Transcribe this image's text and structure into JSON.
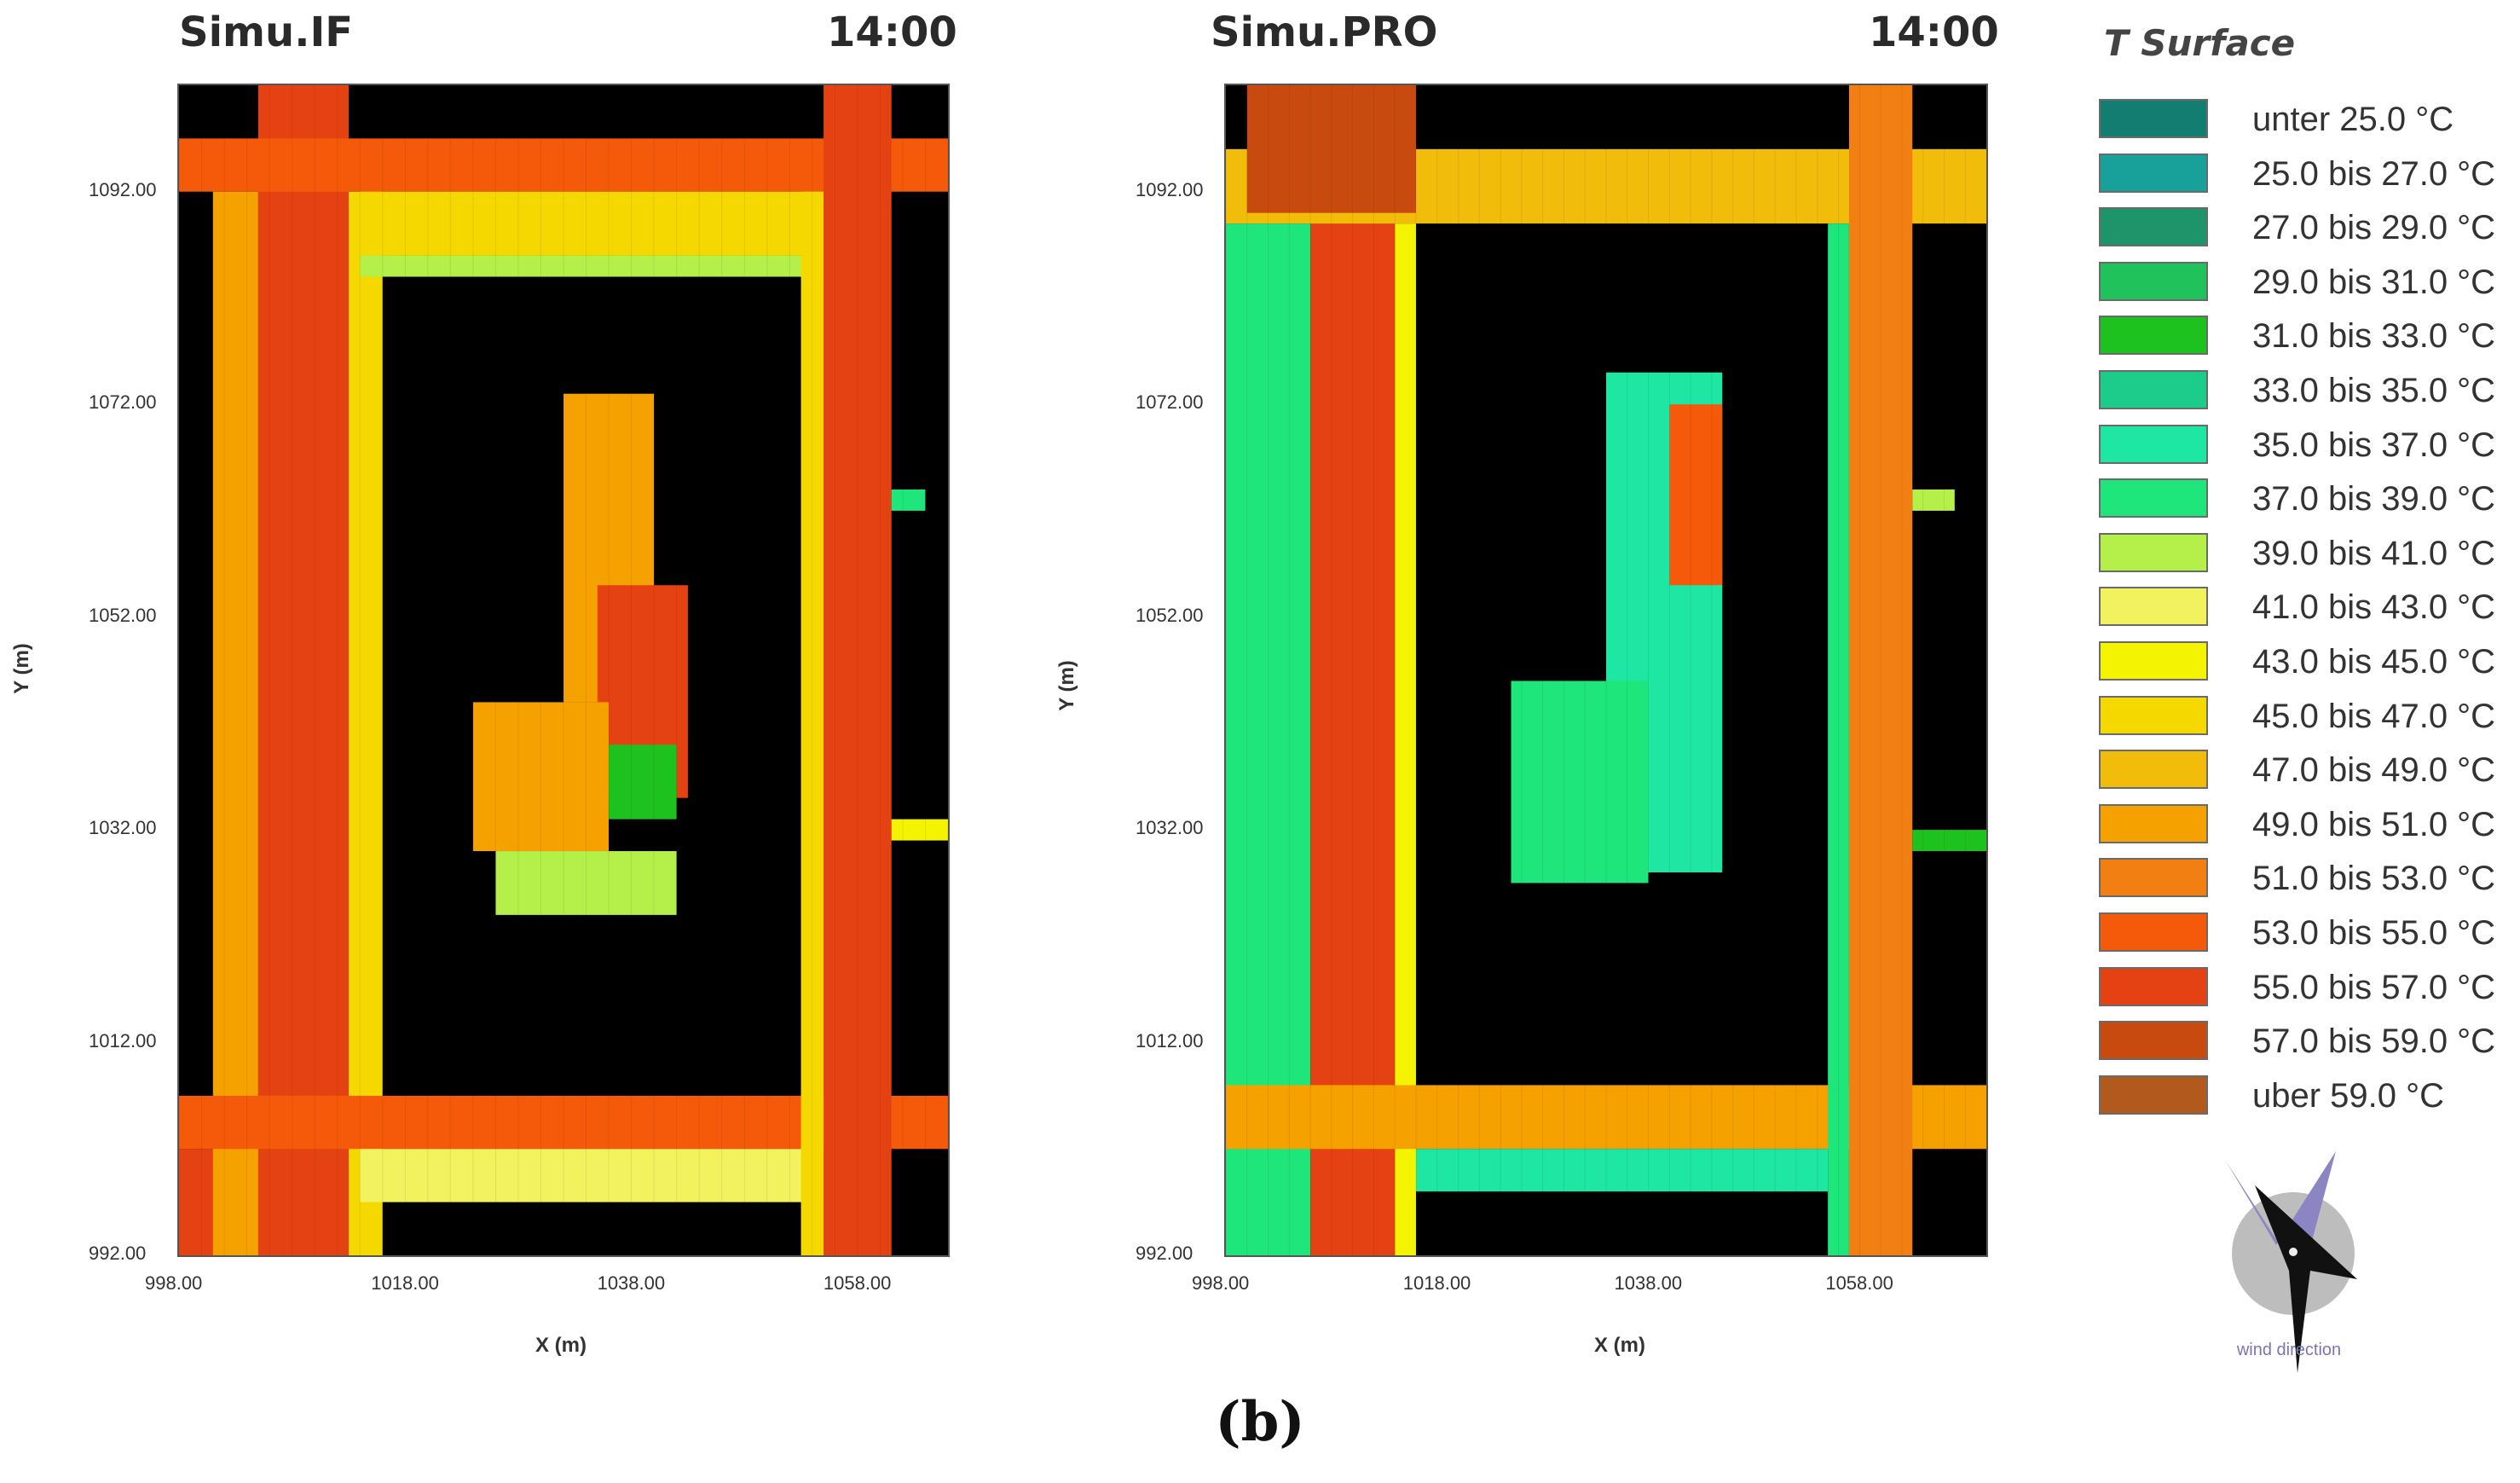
{
  "chart_data": [
    {
      "type": "heatmap",
      "title": "Simu.IF",
      "time": "14:00",
      "xlabel": "X (m)",
      "ylabel": "Y (m)",
      "xlim": [
        998,
        1066
      ],
      "ylim": [
        992,
        1102
      ],
      "x_ticks": [
        "998.00",
        "1018.00",
        "1038.00",
        "1058.00"
      ],
      "y_ticks": [
        "992.00",
        "1012.00",
        "1032.00",
        "1052.00",
        "1072.00",
        "1092.00"
      ],
      "background": "#000000",
      "regions": [
        {
          "x": [
            998,
            1012
          ],
          "y": [
            992,
            1002
          ],
          "t_class": 16
        },
        {
          "x": [
            1005,
            1013
          ],
          "y": [
            992,
            1102
          ],
          "t_class": 16
        },
        {
          "x": [
            1001,
            1005
          ],
          "y": [
            992,
            1092
          ],
          "t_class": 13
        },
        {
          "x": [
            1013,
            1016
          ],
          "y": [
            992,
            1092
          ],
          "t_class": 11
        },
        {
          "x": [
            998,
            1066
          ],
          "y": [
            1092,
            1097
          ],
          "t_class": 15
        },
        {
          "x": [
            1014,
            1055
          ],
          "y": [
            1086,
            1092
          ],
          "t_class": 11
        },
        {
          "x": [
            1014,
            1055
          ],
          "y": [
            1084,
            1086
          ],
          "t_class": 8
        },
        {
          "x": [
            998,
            1066
          ],
          "y": [
            1002,
            1007
          ],
          "t_class": 15
        },
        {
          "x": [
            1014,
            1055
          ],
          "y": [
            997,
            1002
          ],
          "t_class": 9
        },
        {
          "x": [
            1055,
            1061
          ],
          "y": [
            992,
            1102
          ],
          "t_class": 16
        },
        {
          "x": [
            1053,
            1055
          ],
          "y": [
            992,
            1092
          ],
          "t_class": 11
        },
        {
          "x": [
            1032,
            1040
          ],
          "y": [
            1044,
            1073
          ],
          "t_class": 13
        },
        {
          "x": [
            1035,
            1043
          ],
          "y": [
            1035,
            1055
          ],
          "t_class": 16
        },
        {
          "x": [
            1024,
            1036
          ],
          "y": [
            1030,
            1044
          ],
          "t_class": 13
        },
        {
          "x": [
            1036,
            1042
          ],
          "y": [
            1033,
            1040
          ],
          "t_class": 4
        },
        {
          "x": [
            1026,
            1042
          ],
          "y": [
            1024,
            1030
          ],
          "t_class": 8
        },
        {
          "x": [
            1061,
            1066
          ],
          "y": [
            1031,
            1033
          ],
          "t_class": 10
        },
        {
          "x": [
            1061,
            1064
          ],
          "y": [
            1062,
            1064
          ],
          "t_class": 7
        }
      ]
    },
    {
      "type": "heatmap",
      "title": "Simu.PRO",
      "time": "14:00",
      "xlabel": "X (m)",
      "ylabel": "Y (m)",
      "xlim": [
        998,
        1070
      ],
      "ylim": [
        992,
        1102
      ],
      "x_ticks": [
        "998.00",
        "1018.00",
        "1038.00",
        "1058.00"
      ],
      "y_ticks": [
        "992.00",
        "1012.00",
        "1032.00",
        "1052.00",
        "1072.00",
        "1092.00"
      ],
      "background": "#000000",
      "regions": [
        {
          "x": [
            1006,
            1014
          ],
          "y": [
            992,
            1102
          ],
          "t_class": 16
        },
        {
          "x": [
            998,
            1006
          ],
          "y": [
            992,
            1089
          ],
          "t_class": 7
        },
        {
          "x": [
            1014,
            1016
          ],
          "y": [
            992,
            1089
          ],
          "t_class": 10
        },
        {
          "x": [
            998,
            1070
          ],
          "y": [
            1089,
            1096
          ],
          "t_class": 12
        },
        {
          "x": [
            1000,
            1016
          ],
          "y": [
            1090,
            1102
          ],
          "t_class": 17
        },
        {
          "x": [
            998,
            1070
          ],
          "y": [
            1002,
            1008
          ],
          "t_class": 13
        },
        {
          "x": [
            1016,
            1055
          ],
          "y": [
            998,
            1002
          ],
          "t_class": 6
        },
        {
          "x": [
            1057,
            1063
          ],
          "y": [
            992,
            1102
          ],
          "t_class": 14
        },
        {
          "x": [
            1055,
            1057
          ],
          "y": [
            992,
            1089
          ],
          "t_class": 7
        },
        {
          "x": [
            1034,
            1045
          ],
          "y": [
            1028,
            1075
          ],
          "t_class": 6
        },
        {
          "x": [
            1025,
            1038
          ],
          "y": [
            1027,
            1046
          ],
          "t_class": 7
        },
        {
          "x": [
            1040,
            1045
          ],
          "y": [
            1055,
            1072
          ],
          "t_class": 15
        },
        {
          "x": [
            1063,
            1070
          ],
          "y": [
            1030,
            1032
          ],
          "t_class": 4
        },
        {
          "x": [
            1063,
            1067
          ],
          "y": [
            1062,
            1064
          ],
          "t_class": 8
        }
      ]
    }
  ],
  "legend": {
    "title": "T Surface",
    "items": [
      {
        "label": "unter 25.0 °C",
        "color": "#137d72"
      },
      {
        "label": "25.0 bis 27.0 °C",
        "color": "#18a09a"
      },
      {
        "label": "27.0 bis 29.0 °C",
        "color": "#1d946a"
      },
      {
        "label": "29.0 bis 31.0 °C",
        "color": "#20c25c"
      },
      {
        "label": "31.0 bis 33.0 °C",
        "color": "#1ec21e"
      },
      {
        "label": "33.0 bis 35.0 °C",
        "color": "#1ccc8a"
      },
      {
        "label": "35.0 bis 37.0 °C",
        "color": "#1de7a2"
      },
      {
        "label": "37.0 bis 39.0 °C",
        "color": "#1ee67a"
      },
      {
        "label": "39.0 bis 41.0 °C",
        "color": "#b4ef4a"
      },
      {
        "label": "41.0 bis 43.0 °C",
        "color": "#f2f25f"
      },
      {
        "label": "43.0 bis 45.0 °C",
        "color": "#f4f400"
      },
      {
        "label": "45.0 bis 47.0 °C",
        "color": "#f5d800"
      },
      {
        "label": "47.0 bis 49.0 °C",
        "color": "#f2bc0b"
      },
      {
        "label": "49.0 bis 51.0 °C",
        "color": "#f5a100"
      },
      {
        "label": "51.0 bis 53.0 °C",
        "color": "#f27f12"
      },
      {
        "label": "53.0 bis 55.0 °C",
        "color": "#f55a0a"
      },
      {
        "label": "55.0 bis 57.0 °C",
        "color": "#e54213"
      },
      {
        "label": "57.0 bis 59.0 °C",
        "color": "#c94a0e"
      },
      {
        "label": "uber 59.0 °C",
        "color": "#b25a1e"
      }
    ]
  },
  "wind": {
    "label": "wind direction",
    "icon": "wind-direction-arrow-icon"
  },
  "caption": "(b)"
}
